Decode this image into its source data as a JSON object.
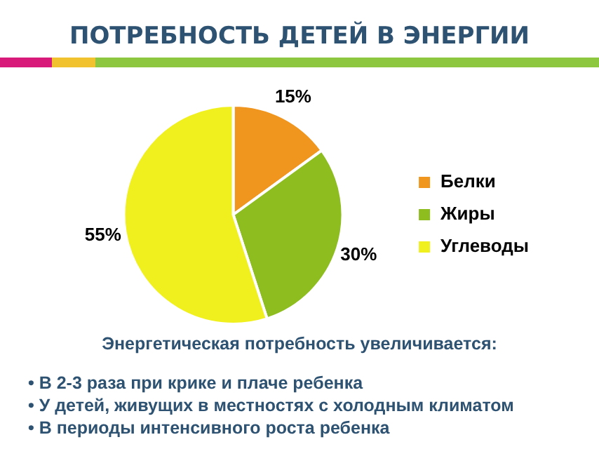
{
  "chart_data": {
    "type": "pie",
    "title": "ПОТРЕБНОСТЬ ДЕТЕЙ В ЭНЕРГИИ",
    "categories": [
      "Белки",
      "Жиры",
      "Углеводы"
    ],
    "values": [
      15,
      30,
      55
    ],
    "colors": [
      "#f0961e",
      "#8dbd1f",
      "#f0f01e"
    ],
    "legend": "right",
    "data_labels": true,
    "value_labels": [
      "15%",
      "30%",
      "55%"
    ],
    "annotations": [
      "Энергетическая потребность увеличивается:",
      "• В 2-3 раза при крике и плаче ребенка",
      "• У детей, живущих в местностях с холодным климатом",
      "• В периоды интенсивного роста ребенка"
    ]
  }
}
